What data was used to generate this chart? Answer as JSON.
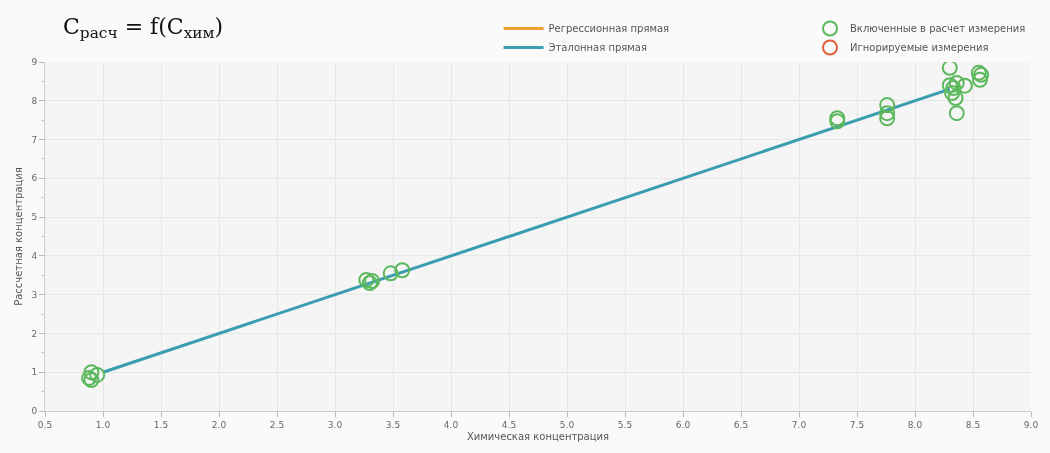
{
  "chart_data": {
    "type": "scatter",
    "title": "C$_{расч}$ = f(C$_{хим}$)",
    "xlabel": "Химическая концентрация",
    "ylabel": "Рассчетная концентрация",
    "series": [
      {
        "name": "Регрессионная прямая",
        "type": "line",
        "marker": "none",
        "color": "#f0a030"
      },
      {
        "name": "Эталонная прямая",
        "type": "line",
        "marker": "none",
        "color": "#3a9db0",
        "x": [
          1.0,
          8.3
        ],
        "values": [
          1.0,
          8.3
        ]
      },
      {
        "name": "Включенные в расчет измерения",
        "color": "#5cb85c",
        "x": [
          0.88,
          0.9,
          0.95,
          0.9,
          3.27,
          3.3,
          3.32,
          3.48,
          3.58,
          7.33,
          7.33,
          7.76,
          7.76,
          7.76,
          8.3,
          8.33,
          8.35,
          8.36,
          8.36,
          8.32,
          8.43,
          8.55,
          8.56,
          8.57,
          8.3
        ],
        "values": [
          0.85,
          1.0,
          0.93,
          0.8,
          3.38,
          3.3,
          3.35,
          3.55,
          3.63,
          7.47,
          7.55,
          7.89,
          7.68,
          7.55,
          8.85,
          8.33,
          8.07,
          7.68,
          8.46,
          8.2,
          8.39,
          8.72,
          8.54,
          8.67,
          8.4
        ]
      },
      {
        "name": "Игнорируемые измерения",
        "color": "#e0603a"
      }
    ],
    "marker": "circle",
    "line_style": "solid",
    "grid": true,
    "legend": "top",
    "xlim": [
      0.5,
      9.0
    ],
    "xticks": [
      {
        "value": 0.5,
        "label": "0.5"
      },
      {
        "value": 1.0,
        "label": "1.0"
      },
      {
        "value": 1.5,
        "label": "1.5"
      },
      {
        "value": 2.0,
        "label": "2.0"
      },
      {
        "value": 2.5,
        "label": "2.5"
      },
      {
        "value": 3.0,
        "label": "3.0"
      },
      {
        "value": 3.5,
        "label": "3.5"
      },
      {
        "value": 4.0,
        "label": "4.0"
      },
      {
        "value": 4.5,
        "label": "4.5"
      },
      {
        "value": 5.0,
        "label": "5.0"
      },
      {
        "value": 5.5,
        "label": "5.5"
      },
      {
        "value": 6.0,
        "label": "6.0"
      },
      {
        "value": 6.5,
        "label": "6.5"
      },
      {
        "value": 7.0,
        "label": "7.0"
      },
      {
        "value": 7.5,
        "label": "7.5"
      },
      {
        "value": 8.0,
        "label": "8.0"
      },
      {
        "value": 8.5,
        "label": "8.5"
      },
      {
        "value": 9.0,
        "label": "9.0"
      }
    ],
    "ylim": [
      0,
      9
    ],
    "yticks": [
      0,
      1,
      2,
      3,
      4,
      5,
      6,
      7,
      8,
      9
    ]
  }
}
